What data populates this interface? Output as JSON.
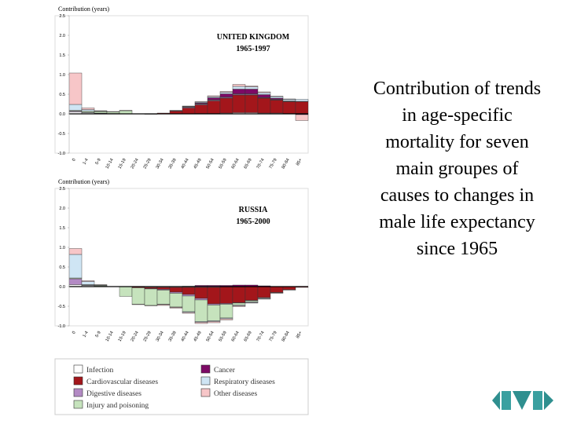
{
  "chart_data": [
    {
      "type": "bar",
      "stacked": true,
      "title": "UNITED KINGDOM",
      "subtitle": "1965-1997",
      "ylabel": "Contribution (years)",
      "categories": [
        "0",
        "1-4",
        "5-9",
        "10-14",
        "15-19",
        "20-24",
        "25-29",
        "30-34",
        "35-39",
        "40-44",
        "45-49",
        "50-54",
        "55-59",
        "60-64",
        "65-69",
        "70-74",
        "75-79",
        "80-84",
        "85+"
      ],
      "ylim": [
        -1,
        2.5
      ],
      "yticks": [
        {
          "value": -1,
          "label": "-1.0"
        },
        {
          "value": -0.5,
          "label": "-0.5"
        },
        {
          "value": 0,
          "label": "0.0"
        },
        {
          "value": 0.5,
          "label": "0.5"
        },
        {
          "value": 1,
          "label": "1.0"
        },
        {
          "value": 1.5,
          "label": "1.5"
        },
        {
          "value": 2,
          "label": "2.0"
        },
        {
          "value": 2.5,
          "label": "2.5"
        }
      ],
      "series": [
        {
          "name": "Infection",
          "color": "#ffffff",
          "values": [
            0.05,
            0.03,
            0.01,
            0.01,
            0,
            0,
            0,
            0,
            0,
            0,
            0.01,
            0.01,
            0.02,
            0.03,
            0.03,
            0.02,
            0.02,
            0.01,
            0.01
          ]
        },
        {
          "name": "Cardiovascular diseases",
          "color": "#a3161b",
          "values": [
            0,
            0,
            0,
            0,
            0,
            0,
            0,
            0.02,
            0.07,
            0.15,
            0.22,
            0.32,
            0.38,
            0.45,
            0.45,
            0.38,
            0.33,
            0.3,
            0.3
          ]
        },
        {
          "name": "Digestive diseases",
          "color": "#b38ac4",
          "values": [
            0.02,
            0.01,
            0.01,
            0,
            0,
            0,
            0,
            0,
            0.01,
            0.02,
            0.02,
            0.02,
            0.02,
            0.02,
            0.02,
            0.01,
            0.01,
            0.01,
            0.01
          ]
        },
        {
          "name": "Injury and poisoning",
          "color": "#c6e3bd",
          "values": [
            0.02,
            0.03,
            0.04,
            0.04,
            0.08,
            0,
            -0.01,
            0,
            0,
            0.01,
            0.01,
            0.01,
            0.01,
            0.01,
            0.01,
            0.01,
            0.01,
            0.01,
            0
          ]
        },
        {
          "name": "Cancer",
          "color": "#7d0a66",
          "values": [
            0,
            0,
            0,
            0,
            0,
            0,
            0,
            0,
            0,
            0,
            0.02,
            0.05,
            0.08,
            0.12,
            0.12,
            0.07,
            0.03,
            0,
            -0.02
          ]
        },
        {
          "name": "Respiratory diseases",
          "color": "#cfe5f4",
          "values": [
            0.15,
            0.04,
            0.01,
            0,
            0,
            0,
            0,
            0,
            0.01,
            0.01,
            0.02,
            0.03,
            0.04,
            0.07,
            0.06,
            0.05,
            0.04,
            0.04,
            0.05
          ]
        },
        {
          "name": "Other diseases",
          "color": "#f7c6c8",
          "values": [
            0.8,
            0.04,
            0.01,
            0.01,
            0.01,
            0,
            0,
            0,
            0,
            0.01,
            0.01,
            0.02,
            0.02,
            0.05,
            0.02,
            0.02,
            0.01,
            0.01,
            -0.15
          ]
        }
      ]
    },
    {
      "type": "bar",
      "stacked": true,
      "title": "RUSSIA",
      "subtitle": "1965-2000",
      "ylabel": "Contribution (years)",
      "categories": [
        "0",
        "1-4",
        "5-9",
        "10-14",
        "15-19",
        "20-24",
        "25-29",
        "30-34",
        "35-39",
        "40-44",
        "45-49",
        "50-54",
        "55-59",
        "60-64",
        "65-69",
        "70-74",
        "75-79",
        "80-84",
        "85+"
      ],
      "ylim": [
        -1,
        2.5
      ],
      "yticks": [
        {
          "value": -1,
          "label": "-1.0"
        },
        {
          "value": -0.5,
          "label": "-0.5"
        },
        {
          "value": 0,
          "label": "0.0"
        },
        {
          "value": 0.5,
          "label": "0.5"
        },
        {
          "value": 1,
          "label": "1.0"
        },
        {
          "value": 1.5,
          "label": "1.5"
        },
        {
          "value": 2,
          "label": "2.0"
        },
        {
          "value": 2.5,
          "label": "2.5"
        }
      ],
      "series": [
        {
          "values": [
            0.05,
            0.03,
            0.01,
            0,
            0,
            -0.01,
            -0.02,
            -0.02,
            -0.02,
            -0.02,
            -0.02,
            -0.02,
            -0.01,
            -0.01,
            0,
            0,
            0,
            0,
            0
          ]
        },
        {
          "values": [
            0,
            0,
            0,
            0,
            0,
            -0.02,
            -0.03,
            -0.05,
            -0.12,
            -0.18,
            -0.28,
            -0.42,
            -0.42,
            -0.4,
            -0.35,
            -0.28,
            -0.15,
            -0.08,
            -0.02
          ]
        },
        {
          "values": [
            0.15,
            0.01,
            0,
            0,
            0,
            0,
            -0.01,
            -0.02,
            -0.03,
            -0.04,
            -0.04,
            -0.03,
            -0.02,
            -0.01,
            -0.01,
            0,
            0,
            0,
            0
          ]
        },
        {
          "values": [
            0.02,
            0.01,
            0.02,
            0,
            -0.25,
            -0.42,
            -0.42,
            -0.36,
            -0.35,
            -0.4,
            -0.55,
            -0.4,
            -0.35,
            -0.05,
            -0.03,
            -0.01,
            0,
            0,
            0
          ]
        },
        {
          "values": [
            0,
            0,
            0,
            0,
            0,
            0,
            0,
            0,
            0,
            0.01,
            0.03,
            0.03,
            0.03,
            0.04,
            0.04,
            0.02,
            0,
            0,
            0
          ]
        },
        {
          "values": [
            0.6,
            0.08,
            0.01,
            0,
            0,
            0,
            0,
            -0.01,
            -0.01,
            -0.02,
            -0.02,
            -0.02,
            -0.02,
            -0.02,
            -0.02,
            -0.02,
            -0.01,
            -0.01,
            0
          ]
        },
        {
          "values": [
            0.15,
            0.02,
            0.01,
            0,
            0,
            -0.01,
            -0.01,
            -0.02,
            -0.02,
            -0.02,
            -0.03,
            -0.03,
            -0.03,
            -0.02,
            -0.01,
            -0.01,
            -0.01,
            0,
            0
          ]
        }
      ]
    }
  ],
  "caption": "Contribution of trends in age-specific mortality for seven main groupes of causes to changes in male life expectancy since 1965"
}
